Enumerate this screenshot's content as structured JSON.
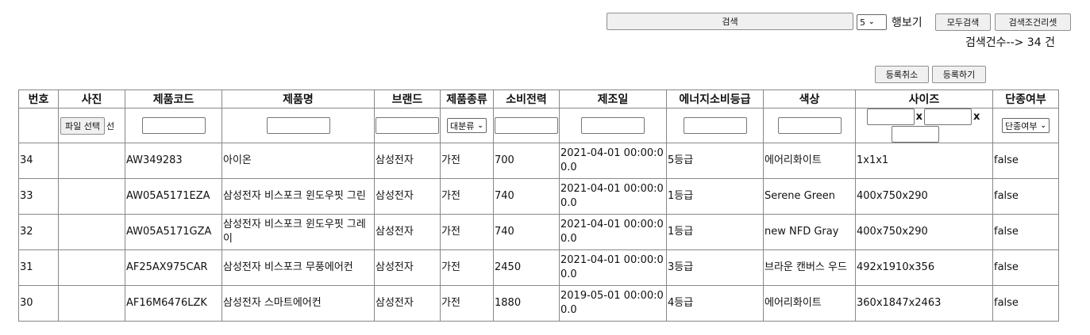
{
  "toolbar": {
    "search_button": "검색",
    "rows_select_value": "5",
    "rows_label": "행보기",
    "search_all_button": "모두검색",
    "reset_conditions_button": "검색조건리셋",
    "result_count_text": "검색건수--> 34 건",
    "cancel_register_button": "등록취소",
    "register_button": "등록하기"
  },
  "table": {
    "headers": [
      "번호",
      "사진",
      "제품코드",
      "제품명",
      "브랜드",
      "제품종류",
      "소비전력",
      "제조일",
      "에너지소비등급",
      "색상",
      "사이즈",
      "단종여부"
    ],
    "filters": {
      "file_button": "파일 선택",
      "file_status": "선",
      "category_select": "대분류",
      "size_separator": "x",
      "discontinued_select": "단종여부"
    },
    "rows": [
      {
        "no": "34",
        "photo": "",
        "code": "AW349283",
        "name": "아이온",
        "brand": "삼성전자",
        "type": "가전",
        "power": "700",
        "date": "2021-04-01 00:00:00.0",
        "grade": "5등급",
        "color": "에어리화이트",
        "size": "1x1x1",
        "discontinued": "false"
      },
      {
        "no": "33",
        "photo": "",
        "code": "AW05A5171EZA",
        "name": "삼성전자 비스포크 윈도우핏 그린",
        "brand": "삼성전자",
        "type": "가전",
        "power": "740",
        "date": "2021-04-01 00:00:00.0",
        "grade": "1등급",
        "color": "Serene Green",
        "size": "400x750x290",
        "discontinued": "false"
      },
      {
        "no": "32",
        "photo": "",
        "code": "AW05A5171GZA",
        "name": "삼성전자 비스포크 윈도우핏 그레이",
        "brand": "삼성전자",
        "type": "가전",
        "power": "740",
        "date": "2021-04-01 00:00:00.0",
        "grade": "1등급",
        "color": "new NFD Gray",
        "size": "400x750x290",
        "discontinued": "false"
      },
      {
        "no": "31",
        "photo": "",
        "code": "AF25AX975CAR",
        "name": "삼성전자 비스포크 무풍에어컨",
        "brand": "삼성전자",
        "type": "가전",
        "power": "2450",
        "date": "2021-04-01 00:00:00.0",
        "grade": "3등급",
        "color": "브라운 캔버스 우드",
        "size": "492x1910x356",
        "discontinued": "false"
      },
      {
        "no": "30",
        "photo": "",
        "code": "AF16M6476LZK",
        "name": "삼성전자 스마트에어컨",
        "brand": "삼성전자",
        "type": "가전",
        "power": "1880",
        "date": "2019-05-01 00:00:00.0",
        "grade": "4등급",
        "color": "에어리화이트",
        "size": "360x1847x2463",
        "discontinued": "false"
      }
    ]
  }
}
